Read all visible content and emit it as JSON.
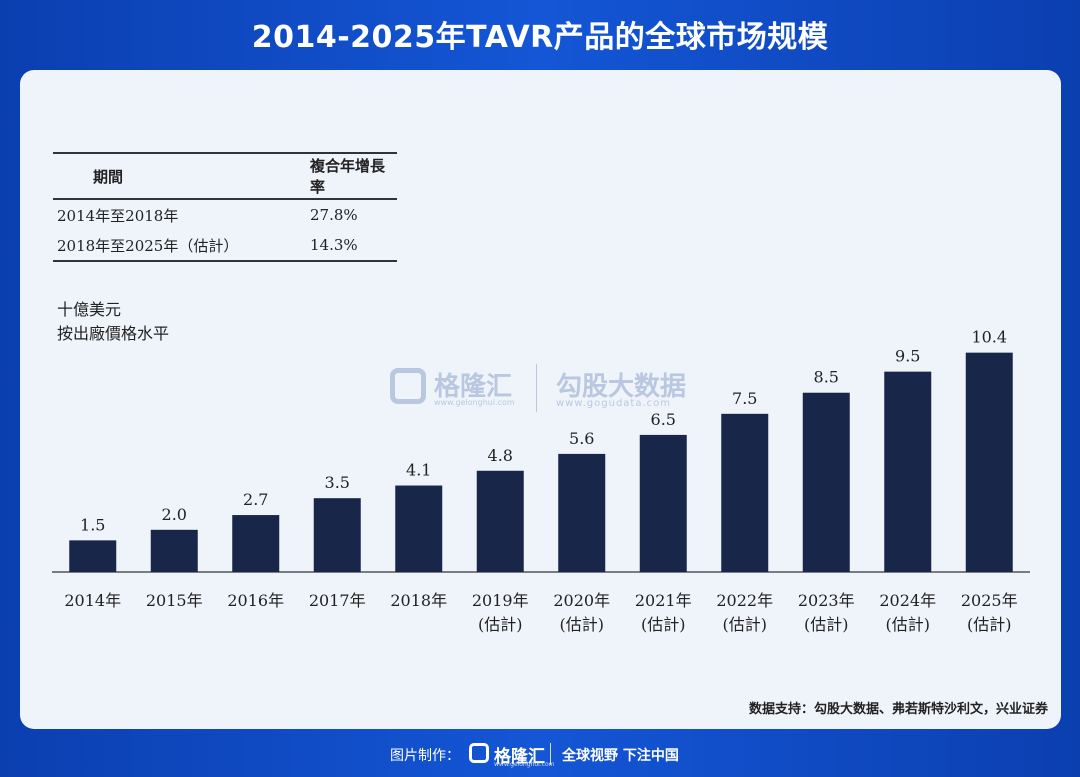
{
  "title": "2014-2025年TAVR产品的全球市场规模",
  "cagr_table": {
    "headers": [
      "期間",
      "複合年增長率"
    ],
    "rows": [
      [
        "2014年至2018年",
        "27.8%"
      ],
      [
        "2018年至2025年（估計）",
        "14.3%"
      ]
    ]
  },
  "unit_lines": [
    "十億美元",
    "按出廠價格水平"
  ],
  "watermark": {
    "brand": "格隆汇",
    "brand_url": "www.gelonghui.com",
    "partner": "勾股大数据",
    "partner_url": "www.gogudata.com"
  },
  "chart_data": {
    "type": "bar",
    "title": "2014-2025年TAVR产品的全球市场规模",
    "ylabel": "十億美元",
    "categories": [
      "2014年",
      "2015年",
      "2016年",
      "2017年",
      "2018年",
      "2019年",
      "2020年",
      "2021年",
      "2022年",
      "2023年",
      "2024年",
      "2025年"
    ],
    "category_notes": [
      "",
      "",
      "",
      "",
      "",
      "(估計)",
      "(估計)",
      "(估計)",
      "(估計)",
      "(估計)",
      "(估計)",
      "(估計)"
    ],
    "values": [
      1.5,
      2.0,
      2.7,
      3.5,
      4.1,
      4.8,
      5.6,
      6.5,
      7.5,
      8.5,
      9.5,
      10.4
    ],
    "value_labels": [
      "1.5",
      "2.0",
      "2.7",
      "3.5",
      "4.1",
      "4.8",
      "5.6",
      "6.5",
      "7.5",
      "8.5",
      "9.5",
      "10.4"
    ],
    "ylim": [
      0,
      11
    ],
    "grid": false,
    "bar_color": "#18264a"
  },
  "source": "数据支持：勾股大数据、弗若斯特沙利文，兴业证券",
  "footer": {
    "credit": "图片制作：",
    "logo": "格隆汇",
    "logo_sub": "www.gelonghui.com",
    "slogan": "全球视野 下注中国"
  }
}
